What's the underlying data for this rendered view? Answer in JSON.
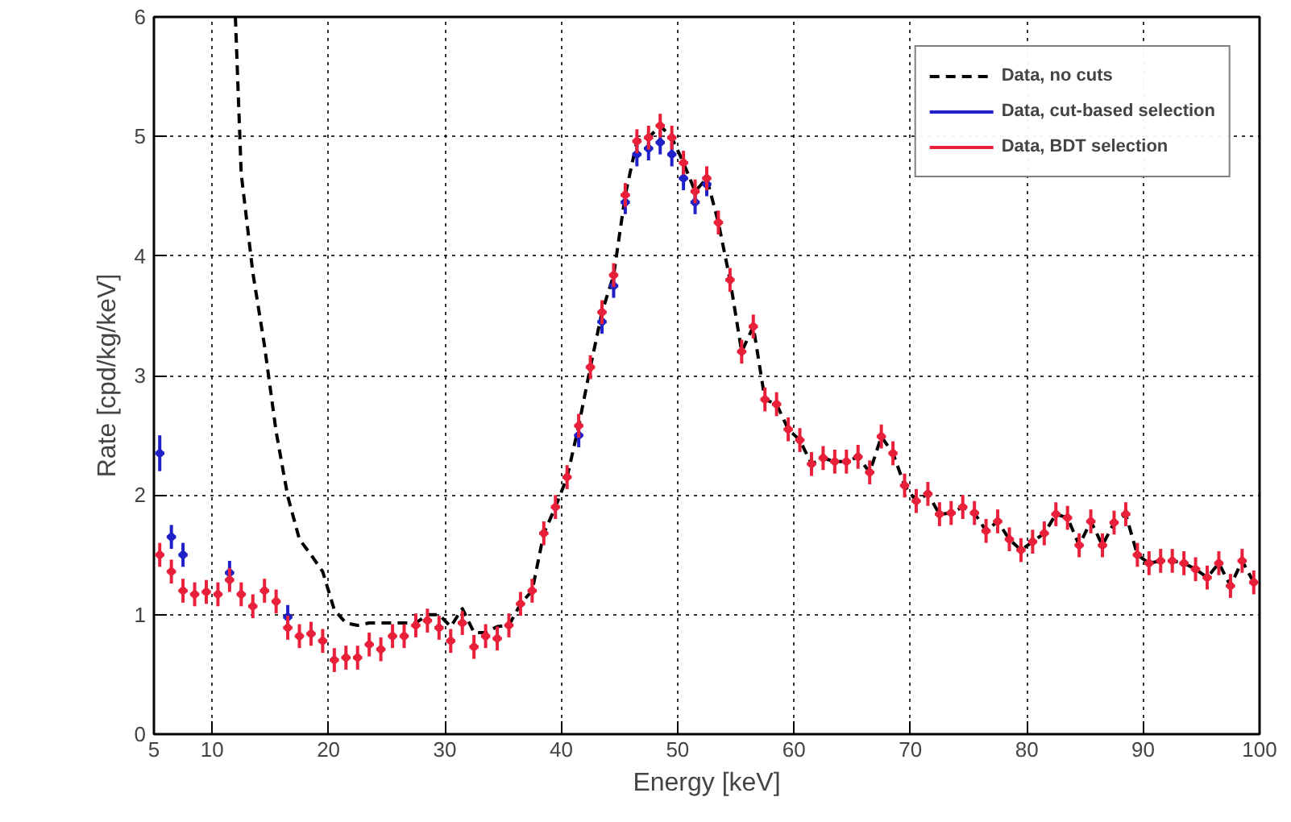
{
  "chart_data": {
    "type": "scatter",
    "xlabel": "Energy [keV]",
    "ylabel": "Rate [cpd/kg/keV]",
    "xlim": [
      5,
      100
    ],
    "ylim": [
      0,
      6
    ],
    "xticks": [
      5,
      10,
      20,
      30,
      40,
      50,
      60,
      70,
      80,
      90,
      100
    ],
    "yticks": [
      0,
      1,
      2,
      3,
      4,
      5,
      6
    ],
    "grid": true,
    "legend": "top right",
    "x": [
      5.5,
      6.5,
      7.5,
      8.5,
      9.5,
      10.5,
      11.5,
      12.5,
      13.5,
      14.5,
      15.5,
      16.5,
      17.5,
      18.5,
      19.5,
      20.5,
      21.5,
      22.5,
      23.5,
      24.5,
      25.5,
      26.5,
      27.5,
      28.5,
      29.5,
      30.5,
      31.5,
      32.5,
      33.5,
      34.5,
      35.5,
      36.5,
      37.5,
      38.5,
      39.5,
      40.5,
      41.5,
      42.5,
      43.5,
      44.5,
      45.5,
      46.5,
      47.5,
      48.5,
      49.5,
      50.5,
      51.5,
      52.5,
      53.5,
      54.5,
      55.5,
      56.5,
      57.5,
      58.5,
      59.5,
      60.5,
      61.5,
      62.5,
      63.5,
      64.5,
      65.5,
      66.5,
      67.5,
      68.5,
      69.5,
      70.5,
      71.5,
      72.5,
      73.5,
      74.5,
      75.5,
      76.5,
      77.5,
      78.5,
      79.5,
      80.5,
      81.5,
      82.5,
      83.5,
      84.5,
      85.5,
      86.5,
      87.5,
      88.5,
      89.5,
      90.5,
      91.5,
      92.5,
      93.5,
      94.5,
      95.5,
      96.5,
      97.5,
      98.5,
      99.5
    ],
    "series": [
      {
        "name": "Data, no cuts",
        "type": "line",
        "line_style": "dashed",
        "color": "#000000",
        "x": [
          12,
          12.5,
          13.5,
          14.5,
          15.5,
          16.5,
          17.5,
          18.5,
          19.5,
          20.5,
          21.5,
          22.5,
          23.5,
          24.5,
          25.5,
          26.5,
          27.5,
          28.5,
          29.5,
          30.5,
          31.5,
          32.5,
          33.5,
          34.5,
          35.5,
          36.5,
          37.5,
          38.5,
          39.5,
          40.5,
          41.5,
          42.5,
          43.5,
          44.5,
          45.5,
          46.5,
          47.5,
          48.5,
          49.5,
          50.5,
          51.5,
          52.5,
          53.5,
          54.5,
          55.5,
          56.5,
          57.5,
          58.5,
          59.5,
          60.5,
          61.5,
          62.5,
          63.5,
          64.5,
          65.5,
          66.5,
          67.5,
          68.5,
          69.5,
          70.5,
          71.5,
          72.5,
          73.5,
          74.5,
          75.5,
          76.5,
          77.5,
          78.5,
          79.5,
          80.5,
          81.5,
          82.5,
          83.5,
          84.5,
          85.5,
          86.5,
          87.5,
          88.5,
          89.5,
          90.5,
          91.5,
          92.5,
          93.5,
          94.5,
          95.5,
          96.5,
          97.5,
          98.5,
          99.5
        ],
        "values": [
          6,
          4.69,
          3.86,
          3.25,
          2.53,
          1.99,
          1.63,
          1.5,
          1.36,
          1.04,
          0.93,
          0.91,
          0.93,
          0.93,
          0.93,
          0.93,
          0.93,
          1.0,
          1.0,
          0.9,
          1.05,
          0.85,
          0.85,
          0.9,
          0.91,
          1.09,
          1.2,
          1.68,
          1.9,
          2.15,
          2.58,
          3.07,
          3.53,
          3.84,
          4.51,
          4.96,
          4.99,
          5.09,
          4.99,
          4.78,
          4.54,
          4.65,
          4.28,
          3.8,
          3.2,
          3.41,
          2.8,
          2.76,
          2.55,
          2.46,
          2.26,
          2.31,
          2.28,
          2.28,
          2.32,
          2.19,
          2.49,
          2.35,
          2.08,
          1.95,
          2.01,
          1.84,
          1.85,
          1.9,
          1.85,
          1.7,
          1.78,
          1.63,
          1.54,
          1.61,
          1.68,
          1.84,
          1.81,
          1.58,
          1.78,
          1.58,
          1.77,
          1.84,
          1.5,
          1.43,
          1.45,
          1.45,
          1.43,
          1.38,
          1.31,
          1.43,
          1.24,
          1.45,
          1.27
        ]
      },
      {
        "name": "Data, cut-based selection",
        "color": "#2020c8",
        "values": [
          2.35,
          1.65,
          1.5,
          null,
          null,
          null,
          1.35,
          null,
          null,
          null,
          null,
          0.98,
          null,
          null,
          null,
          null,
          null,
          null,
          null,
          null,
          null,
          null,
          null,
          null,
          null,
          null,
          null,
          null,
          null,
          null,
          null,
          null,
          null,
          null,
          null,
          null,
          2.5,
          null,
          3.45,
          3.75,
          4.45,
          4.85,
          4.9,
          4.95,
          4.85,
          4.65,
          4.45,
          4.6,
          null,
          null,
          null,
          null,
          null,
          null,
          null,
          null,
          null,
          null,
          null,
          null,
          null,
          null,
          null,
          null,
          null,
          null,
          null,
          null,
          null,
          null,
          null,
          null,
          null,
          null,
          null,
          null,
          null,
          null,
          null,
          null,
          null,
          null,
          null,
          null,
          null,
          null,
          null,
          null,
          null,
          null,
          null,
          null,
          null,
          null,
          null
        ],
        "errors": [
          0.15,
          0.1,
          0.1,
          null,
          null,
          null,
          0.1,
          null,
          null,
          null,
          null,
          0.1,
          null,
          null,
          null,
          null,
          null,
          null,
          null,
          null,
          null,
          null,
          null,
          null,
          null,
          null,
          null,
          null,
          null,
          null,
          null,
          null,
          null,
          null,
          null,
          null,
          0.1,
          null,
          0.1,
          0.1,
          0.1,
          0.1,
          0.1,
          0.1,
          0.1,
          0.1,
          0.1,
          0.1,
          null,
          null,
          null,
          null,
          null,
          null,
          null,
          null,
          null,
          null,
          null,
          null,
          null,
          null,
          null,
          null,
          null,
          null,
          null,
          null,
          null,
          null,
          null,
          null,
          null,
          null,
          null,
          null,
          null,
          null,
          null,
          null,
          null,
          null,
          null,
          null,
          null,
          null,
          null,
          null,
          null,
          null,
          null,
          null,
          null,
          null,
          null
        ],
        "marker": "circle",
        "xerrors": [
          0.4,
          0.4,
          0.4,
          null,
          null,
          null,
          0.4,
          null,
          null,
          null,
          null,
          0.4,
          null,
          null,
          null,
          null,
          null,
          null,
          null,
          null,
          null,
          null,
          null,
          null,
          null,
          null,
          null,
          null,
          null,
          null,
          null,
          null,
          null,
          null,
          null,
          null,
          0.4,
          null,
          0.4,
          0.4,
          0.4,
          0.4,
          0.4,
          0.4,
          0.4,
          0.4,
          0.4,
          0.4,
          null,
          null,
          null,
          null,
          null,
          null,
          null,
          null,
          null,
          null,
          null,
          null,
          null,
          null,
          null,
          null,
          null,
          null,
          null,
          null,
          null,
          null,
          null,
          null,
          null,
          null,
          null,
          null,
          null,
          null,
          null,
          null,
          null,
          null,
          null,
          null,
          null,
          null,
          null,
          null,
          null,
          null,
          null,
          null,
          null,
          null,
          null
        ]
      },
      {
        "name": "Data, BDT selection",
        "color": "#e8203a",
        "values": [
          1.5,
          1.36,
          1.2,
          1.17,
          1.19,
          1.17,
          1.29,
          1.17,
          1.07,
          1.2,
          1.11,
          0.89,
          0.82,
          0.84,
          0.78,
          0.62,
          0.64,
          0.64,
          0.75,
          0.71,
          0.82,
          0.82,
          0.91,
          0.95,
          0.89,
          0.78,
          0.93,
          0.73,
          0.82,
          0.8,
          0.91,
          1.09,
          1.2,
          1.68,
          1.9,
          2.15,
          2.58,
          3.07,
          3.53,
          3.84,
          4.51,
          4.96,
          4.99,
          5.09,
          4.99,
          4.78,
          4.54,
          4.65,
          4.28,
          3.8,
          3.2,
          3.41,
          2.8,
          2.76,
          2.55,
          2.46,
          2.26,
          2.31,
          2.28,
          2.28,
          2.32,
          2.19,
          2.49,
          2.35,
          2.08,
          1.95,
          2.01,
          1.84,
          1.85,
          1.9,
          1.85,
          1.7,
          1.78,
          1.63,
          1.54,
          1.61,
          1.68,
          1.84,
          1.81,
          1.58,
          1.78,
          1.58,
          1.77,
          1.84,
          1.5,
          1.43,
          1.45,
          1.45,
          1.43,
          1.38,
          1.31,
          1.43,
          1.24,
          1.45,
          1.27
        ],
        "errors": [
          0.1,
          0.1,
          0.1,
          0.1,
          0.1,
          0.1,
          0.1,
          0.1,
          0.1,
          0.1,
          0.1,
          0.1,
          0.1,
          0.1,
          0.1,
          0.1,
          0.1,
          0.1,
          0.1,
          0.1,
          0.1,
          0.1,
          0.1,
          0.1,
          0.1,
          0.1,
          0.1,
          0.1,
          0.1,
          0.1,
          0.1,
          0.1,
          0.1,
          0.1,
          0.1,
          0.1,
          0.1,
          0.1,
          0.1,
          0.1,
          0.1,
          0.1,
          0.1,
          0.1,
          0.1,
          0.1,
          0.1,
          0.1,
          0.1,
          0.1,
          0.1,
          0.1,
          0.1,
          0.1,
          0.1,
          0.1,
          0.1,
          0.1,
          0.1,
          0.1,
          0.1,
          0.1,
          0.1,
          0.1,
          0.1,
          0.1,
          0.1,
          0.1,
          0.1,
          0.1,
          0.1,
          0.1,
          0.1,
          0.1,
          0.1,
          0.1,
          0.1,
          0.1,
          0.1,
          0.1,
          0.1,
          0.1,
          0.1,
          0.1,
          0.1,
          0.1,
          0.1,
          0.1,
          0.1,
          0.1,
          0.1,
          0.1,
          0.1,
          0.1,
          0.1
        ],
        "marker": "circle",
        "xerrors": [
          0.4,
          0.4,
          0.4,
          0.4,
          0.4,
          0.4,
          0.4,
          0.4,
          0.4,
          0.4,
          0.4,
          0.4,
          0.4,
          0.4,
          0.4,
          0.4,
          0.4,
          0.4,
          0.4,
          0.4,
          0.4,
          0.4,
          0.4,
          0.4,
          0.4,
          0.4,
          0.4,
          0.4,
          0.4,
          0.4,
          0.4,
          0.4,
          0.4,
          0.4,
          0.4,
          0.4,
          0.4,
          0.4,
          0.4,
          0.4,
          0.4,
          0.4,
          0.4,
          0.4,
          0.4,
          0.4,
          0.4,
          0.4,
          0.4,
          0.4,
          0.4,
          0.4,
          0.4,
          0.4,
          0.4,
          0.4,
          0.4,
          0.4,
          0.4,
          0.4,
          0.4,
          0.4,
          0.4,
          0.4,
          0.4,
          0.4,
          0.4,
          0.4,
          0.4,
          0.4,
          0.4,
          0.4,
          0.4,
          0.4,
          0.4,
          0.4,
          0.4,
          0.4,
          0.4,
          0.4,
          0.4,
          0.4,
          0.4,
          0.4,
          0.4,
          0.4,
          0.4,
          0.4,
          0.4,
          0.4,
          0.4,
          0.4,
          0.4,
          0.4,
          0.4
        ]
      }
    ]
  }
}
